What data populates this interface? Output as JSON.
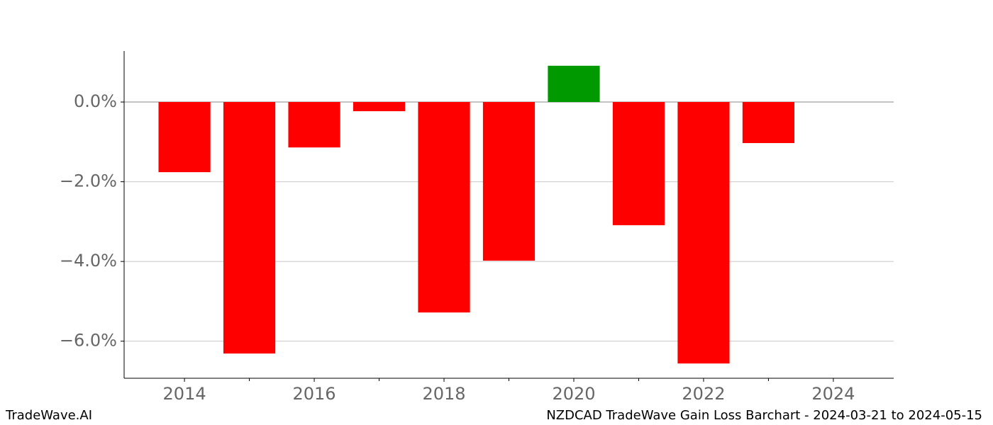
{
  "chart_data": {
    "type": "bar",
    "title": "NZDCAD TradeWave Gain Loss Barchart - 2024-03-21 to 2024-05-15",
    "brand": "TradeWave.AI",
    "x": [
      2014,
      2015,
      2016,
      2017,
      2018,
      2019,
      2020,
      2021,
      2022,
      2023
    ],
    "values": [
      -1.76,
      -6.31,
      -1.14,
      -0.23,
      -5.28,
      -3.98,
      0.91,
      -3.09,
      -6.56,
      -1.03
    ],
    "positive_color": "#009900",
    "negative_color": "#ff0000",
    "xlim": [
      2013.07,
      2024.93
    ],
    "xticks": [
      2014,
      2016,
      2018,
      2020,
      2022,
      2024
    ],
    "xticks_minor": [
      2015,
      2017,
      2019,
      2021,
      2023
    ],
    "ylim": [
      -6.93,
      1.28
    ],
    "yticks": [
      {
        "value": 0,
        "label": "0.0%"
      },
      {
        "value": -2,
        "label": "−2.0%"
      },
      {
        "value": -4,
        "label": "−4.0%"
      },
      {
        "value": -6,
        "label": "−6.0%"
      }
    ],
    "grid": true
  }
}
